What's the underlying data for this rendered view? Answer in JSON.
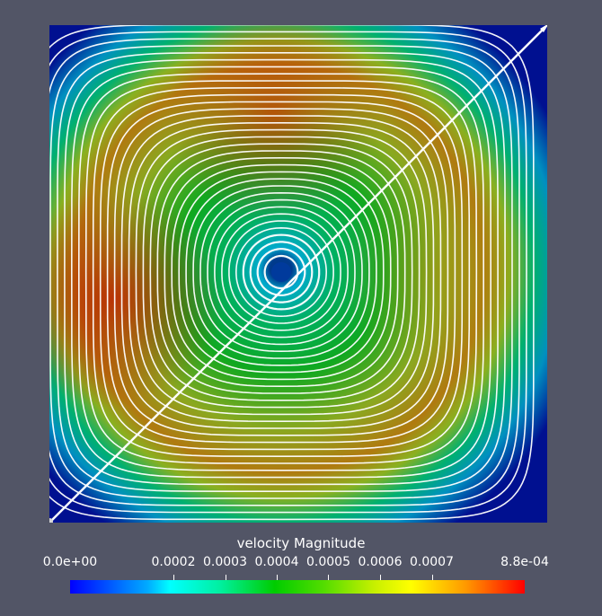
{
  "view": {
    "background": "#525566",
    "field_name": "velocity Magnitude",
    "streamline_color": "#ffffff"
  },
  "colorbar": {
    "title": "velocity Magnitude",
    "min_label": "0.0e+00",
    "max_label": "8.8e-04",
    "range": [
      0,
      0.00088
    ],
    "ticks": [
      {
        "value": 0.0002,
        "label": "0.0002"
      },
      {
        "value": 0.0003,
        "label": "0.0003"
      },
      {
        "value": 0.0004,
        "label": "0.0004"
      },
      {
        "value": 0.0005,
        "label": "0.0005"
      },
      {
        "value": 0.0006,
        "label": "0.0006"
      },
      {
        "value": 0.0007,
        "label": "0.0007"
      }
    ],
    "colormap": [
      "#0000ff",
      "#00ffff",
      "#00cc00",
      "#ffff00",
      "#ff0000"
    ]
  }
}
